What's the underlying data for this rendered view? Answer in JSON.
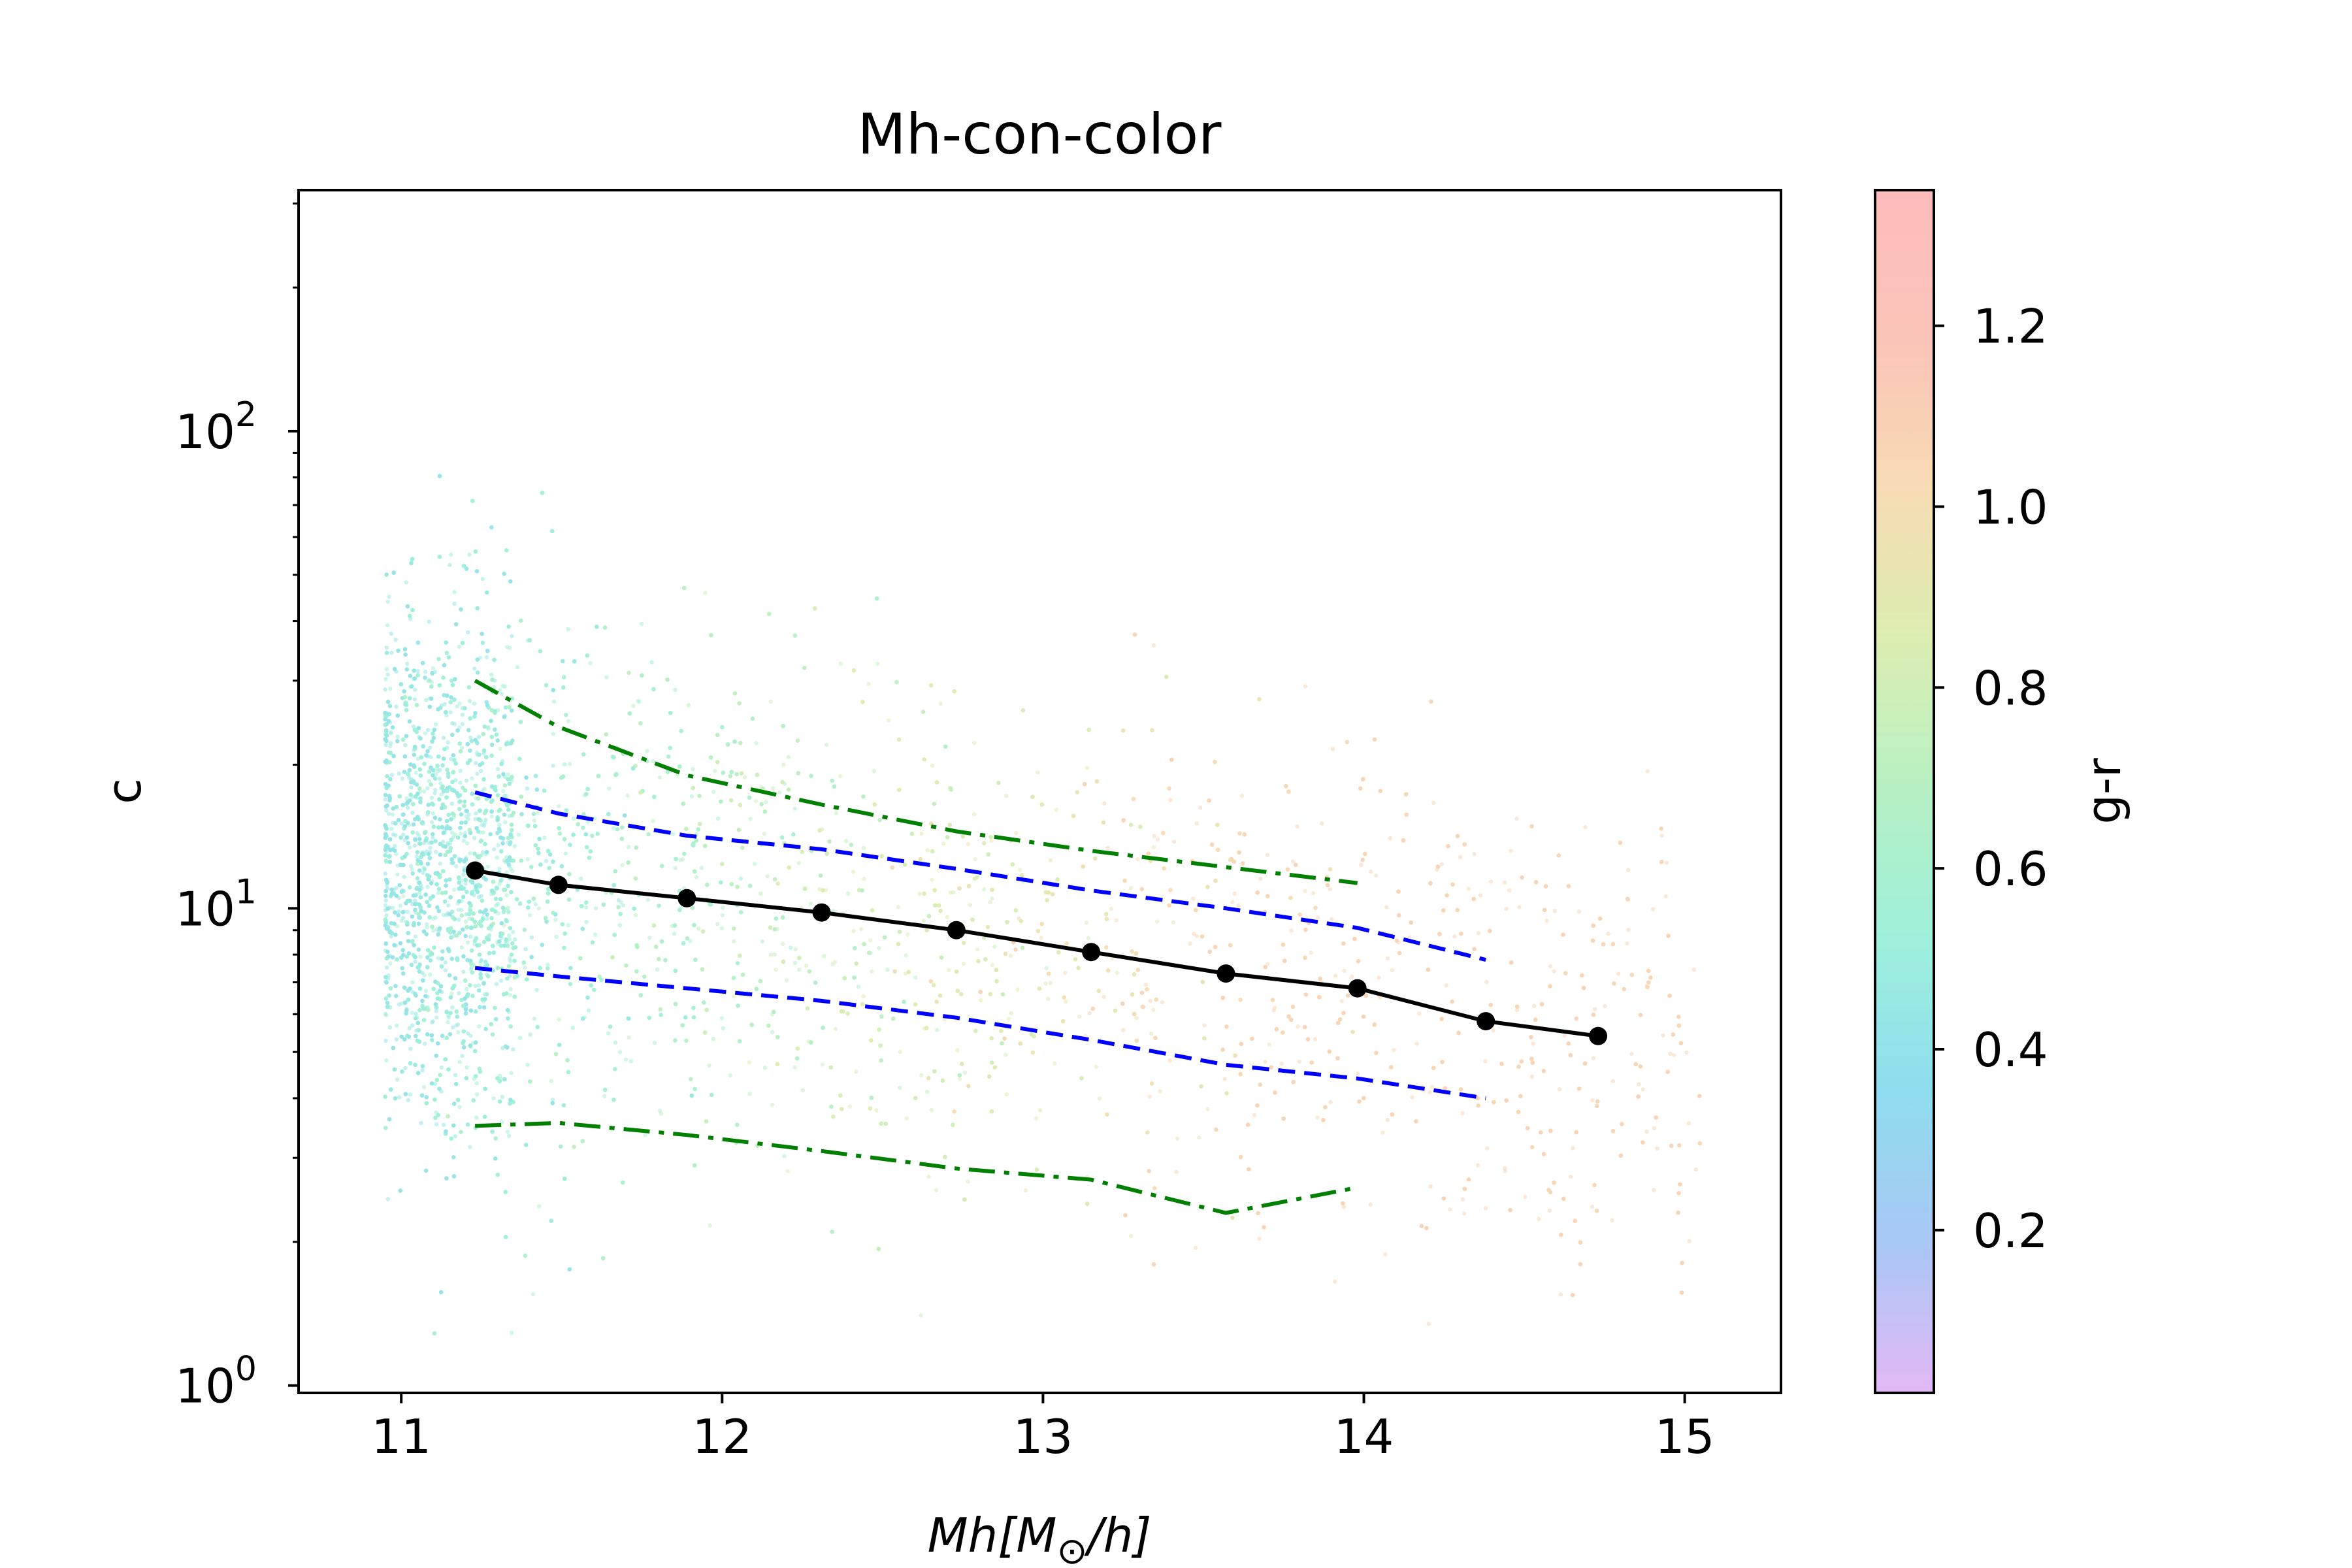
{
  "chart_data": {
    "type": "scatter",
    "title": "Mh-con-color",
    "xlabel": "Mh[M",
    "xlabel_sub": "⊙",
    "xlabel_end": "/h]",
    "ylabel": "c",
    "yscale": "log",
    "xlim": [
      10.68,
      15.3
    ],
    "ylim": [
      0.965,
      320
    ],
    "grid": false,
    "x_ticks": [
      {
        "value": 11,
        "label": "11"
      },
      {
        "value": 12,
        "label": "12"
      },
      {
        "value": 13,
        "label": "13"
      },
      {
        "value": 14,
        "label": "14"
      },
      {
        "value": 15,
        "label": "15"
      }
    ],
    "y_ticks": [
      {
        "value": 1,
        "base": "10",
        "exp": "0"
      },
      {
        "value": 10,
        "base": "10",
        "exp": "1"
      },
      {
        "value": 100,
        "base": "10",
        "exp": "2"
      }
    ],
    "colorbar": {
      "label": "g-r",
      "range": [
        0.02,
        1.35
      ],
      "ticks": [
        {
          "value": 0.2,
          "label": "0.2"
        },
        {
          "value": 0.4,
          "label": "0.4"
        },
        {
          "value": 0.6,
          "label": "0.6"
        },
        {
          "value": 0.8,
          "label": "0.8"
        },
        {
          "value": 1.0,
          "label": "1.0"
        },
        {
          "value": 1.2,
          "label": "1.2"
        }
      ],
      "colors": [
        "#e3b8f6",
        "#a9c8f5",
        "#8fdcee",
        "#9ef0dc",
        "#b6f0c4",
        "#dceeb2",
        "#f7dcb4",
        "#fbc4b8",
        "#fcbcbc"
      ]
    },
    "series": [
      {
        "style": "median",
        "color": "#000000",
        "x": [
          11.23,
          11.49,
          11.89,
          12.31,
          12.73,
          13.15,
          13.57,
          13.98,
          14.38,
          14.73
        ],
        "y": [
          12.0,
          11.2,
          10.5,
          9.8,
          9.0,
          8.1,
          7.3,
          6.8,
          5.8,
          5.4
        ]
      },
      {
        "style": "upper-1sigma",
        "color": "#0000ff",
        "x": [
          11.23,
          11.49,
          11.89,
          12.31,
          12.73,
          13.15,
          13.57,
          13.98,
          14.38
        ],
        "y": [
          17.5,
          15.8,
          14.2,
          13.3,
          12.1,
          10.9,
          10.0,
          9.1,
          7.8
        ]
      },
      {
        "style": "lower-1sigma",
        "color": "#0000ff",
        "x": [
          11.23,
          11.49,
          11.89,
          12.31,
          12.73,
          13.15,
          13.57,
          13.98,
          14.38
        ],
        "y": [
          7.5,
          7.2,
          6.8,
          6.4,
          5.9,
          5.3,
          4.7,
          4.4,
          4.0
        ]
      },
      {
        "style": "upper-2sigma",
        "color": "#008000",
        "x": [
          11.23,
          11.49,
          11.89,
          12.31,
          12.73,
          13.15,
          13.57,
          13.98
        ],
        "y": [
          30,
          24,
          19,
          16.5,
          14.5,
          13.2,
          12.2,
          11.3
        ]
      },
      {
        "style": "lower-2sigma",
        "color": "#008000",
        "x": [
          11.23,
          11.49,
          11.89,
          12.31,
          12.73,
          13.15,
          13.57,
          13.98
        ],
        "y": [
          3.5,
          3.55,
          3.35,
          3.1,
          2.85,
          2.7,
          2.3,
          2.6
        ]
      }
    ]
  }
}
